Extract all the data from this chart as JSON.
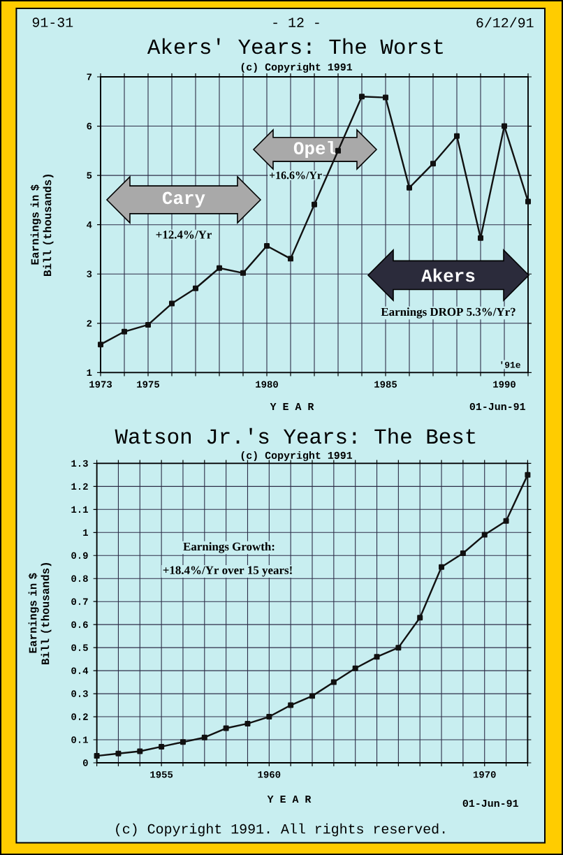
{
  "chart_data": [
    {
      "type": "line",
      "title": "Akers' Years: The Worst",
      "subtitle": "(c) Copyright 1991",
      "xlabel": "Y E A R",
      "ylabel": "Earnings in $ Bill (thousands)",
      "x": [
        1973,
        1974,
        1975,
        1976,
        1977,
        1978,
        1979,
        1980,
        1981,
        1982,
        1983,
        1984,
        1985,
        1986,
        1987,
        1988,
        1989,
        1990,
        1991
      ],
      "values": [
        1.57,
        1.83,
        1.97,
        2.4,
        2.71,
        3.12,
        3.02,
        3.57,
        3.31,
        4.41,
        5.5,
        6.6,
        6.58,
        4.75,
        5.24,
        5.8,
        3.73,
        6.0,
        4.47
      ],
      "color": "#111111",
      "marker": "square",
      "line_style": "solid",
      "grid": true,
      "xlim": [
        1973,
        1991
      ],
      "xticks": [
        1973,
        {
          "value": 1974,
          "label": null
        },
        1975,
        {
          "value": 1976,
          "label": null
        },
        {
          "value": 1977,
          "label": null
        },
        {
          "value": 1978,
          "label": null
        },
        {
          "value": 1979,
          "label": null
        },
        1980,
        {
          "value": 1981,
          "label": null
        },
        {
          "value": 1982,
          "label": null
        },
        {
          "value": 1983,
          "label": null
        },
        {
          "value": 1984,
          "label": null
        },
        1985,
        {
          "value": 1986,
          "label": null
        },
        {
          "value": 1987,
          "label": null
        },
        {
          "value": 1988,
          "label": null
        },
        {
          "value": 1989,
          "label": null
        },
        1990,
        {
          "value": 1991,
          "label": null
        }
      ],
      "ylim": [
        1,
        7
      ],
      "yticks": [
        1,
        2,
        3,
        4,
        5,
        6,
        7
      ],
      "annotations": [
        "91-31",
        "- 12 -",
        "6/12/91",
        "01-Jun-91",
        "Cary",
        "+12.4%/Yr",
        "Opel",
        "+16.6%/Yr",
        "Akers",
        "Earnings DROP 5.3%/Yr?",
        "'91e"
      ]
    },
    {
      "type": "line",
      "title": "Watson Jr.'s Years: The Best",
      "subtitle": "(c) Copyright 1991",
      "xlabel": "Y E A R",
      "ylabel": "Earnings in $ Bill (thousands)",
      "x": [
        1952,
        1953,
        1954,
        1955,
        1956,
        1957,
        1958,
        1959,
        1960,
        1961,
        1962,
        1963,
        1964,
        1965,
        1966,
        1967,
        1968,
        1969,
        1970,
        1971,
        1972
      ],
      "values": [
        0.03,
        0.04,
        0.05,
        0.07,
        0.09,
        0.11,
        0.15,
        0.17,
        0.2,
        0.25,
        0.29,
        0.35,
        0.41,
        0.46,
        0.5,
        0.63,
        0.85,
        0.91,
        0.99,
        1.05,
        1.25
      ],
      "color": "#111111",
      "marker": "square",
      "line_style": "solid",
      "grid": true,
      "xlim": [
        1952,
        1972
      ],
      "xticks": [
        {
          "value": 1952,
          "label": null
        },
        {
          "value": 1953,
          "label": null
        },
        {
          "value": 1954,
          "label": null
        },
        1955,
        {
          "value": 1956,
          "label": null
        },
        {
          "value": 1957,
          "label": null
        },
        {
          "value": 1958,
          "label": null
        },
        {
          "value": 1959,
          "label": null
        },
        1960,
        {
          "value": 1961,
          "label": null
        },
        {
          "value": 1962,
          "label": null
        },
        {
          "value": 1963,
          "label": null
        },
        {
          "value": 1964,
          "label": null
        },
        {
          "value": 1965,
          "label": null
        },
        {
          "value": 1966,
          "label": null
        },
        {
          "value": 1967,
          "label": null
        },
        {
          "value": 1968,
          "label": null
        },
        {
          "value": 1969,
          "label": null
        },
        1970,
        {
          "value": 1971,
          "label": null
        },
        {
          "value": 1972,
          "label": null
        }
      ],
      "ylim": [
        0,
        1.3
      ],
      "yticks": [
        0,
        0.1,
        0.2,
        0.3,
        0.4,
        0.5,
        0.6,
        0.7,
        0.8,
        0.9,
        1,
        1.1,
        1.2,
        1.3
      ],
      "annotations": [
        "Earnings Growth:",
        "+18.4%/Yr over 15 years!",
        "01-Jun-91",
        "(c) Copyright 1991. All rights reserved."
      ]
    }
  ]
}
